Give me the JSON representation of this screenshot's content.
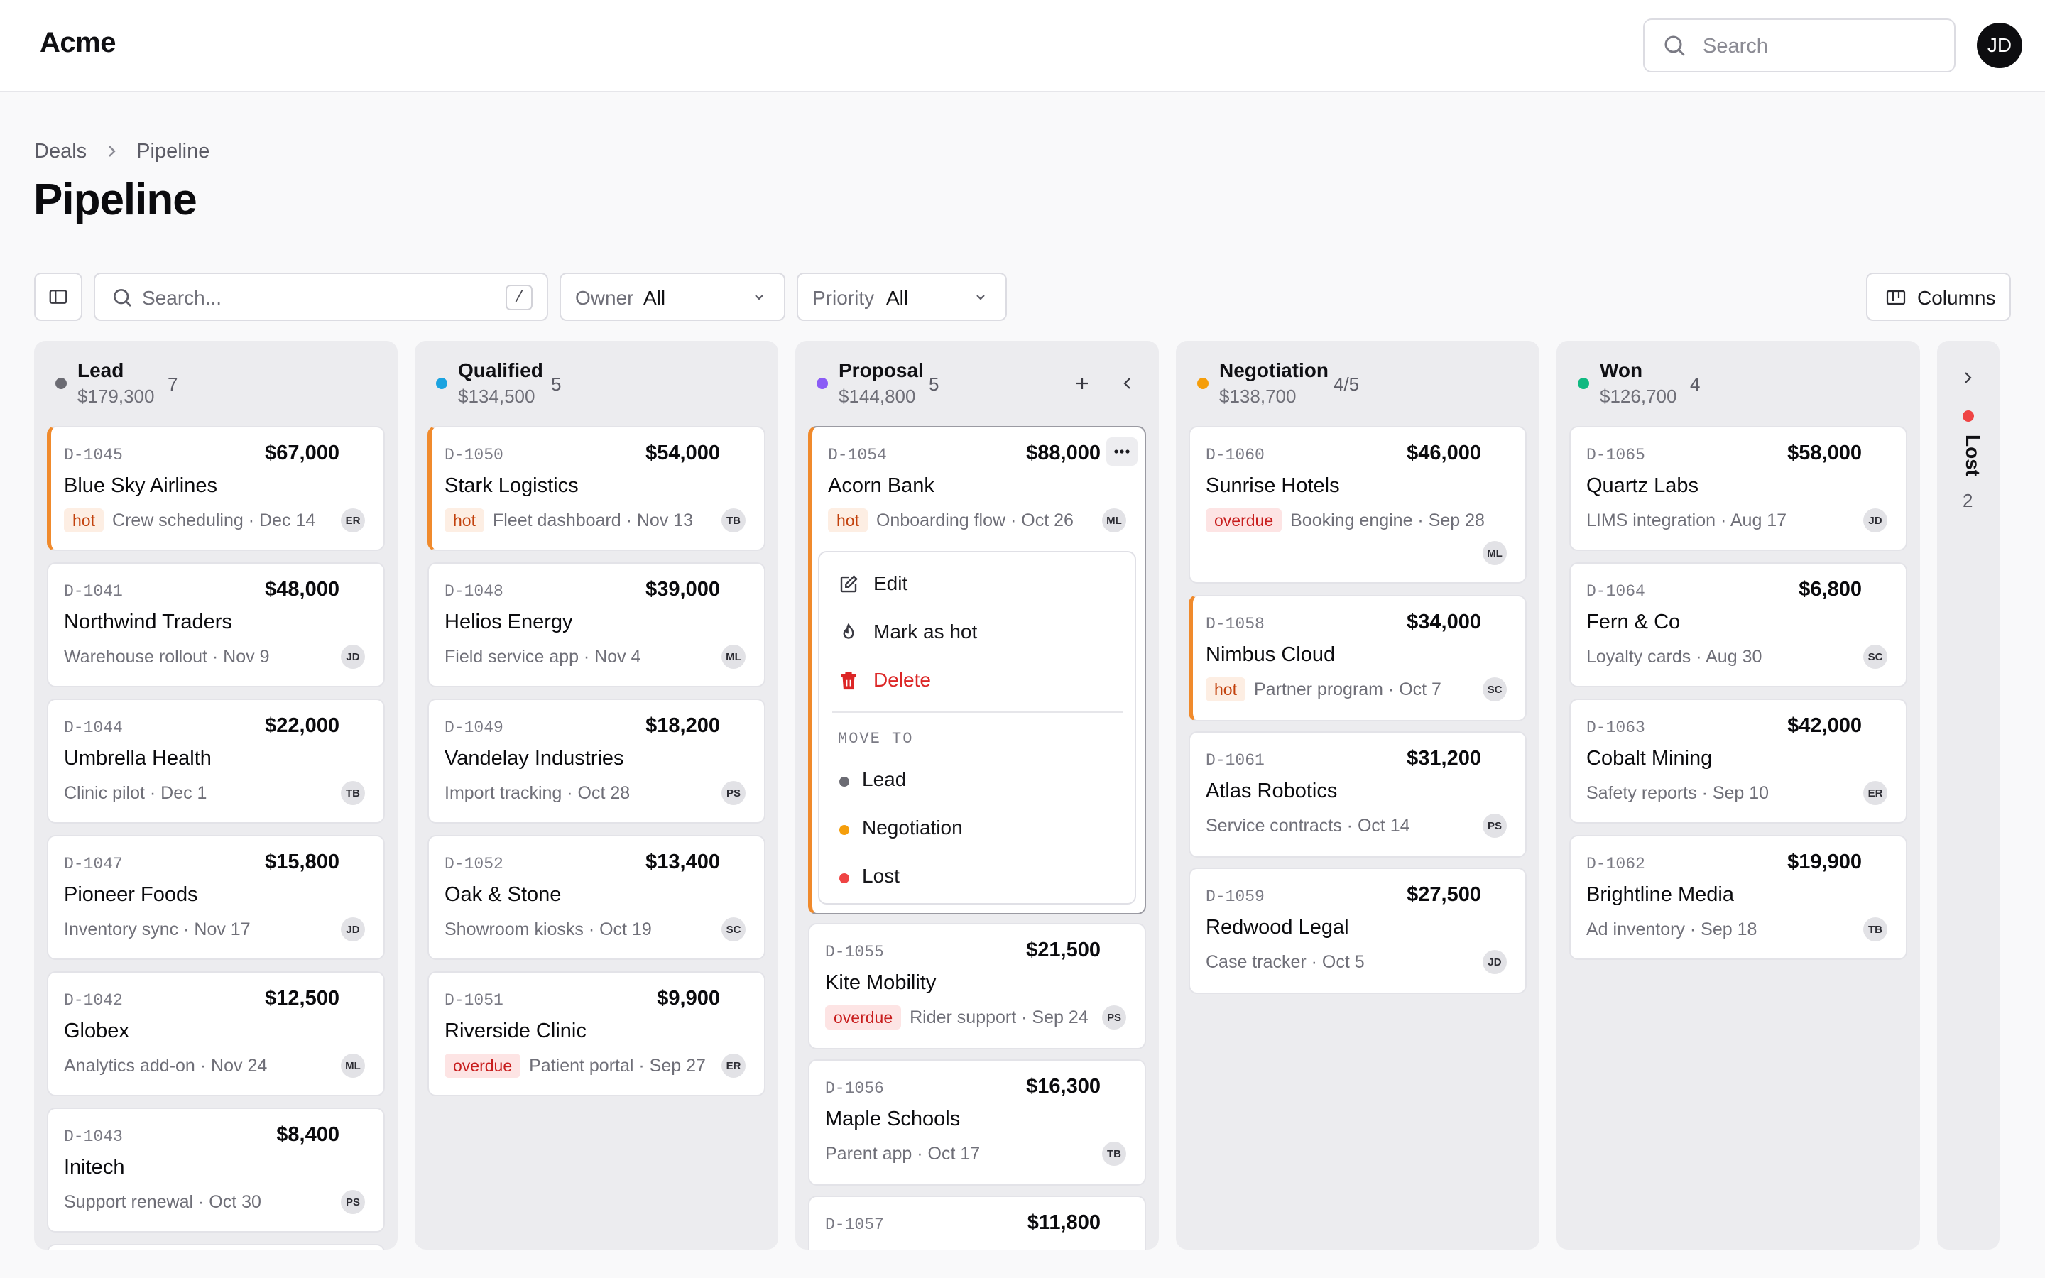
{
  "app": {
    "logo": "Acme",
    "avatar": "JD"
  },
  "header": {
    "search_placeholder": "Search"
  },
  "breadcrumb": {
    "parent": "Deals",
    "current": "Pipeline"
  },
  "page_title": "Pipeline",
  "toolbar": {
    "search_placeholder": "Search...",
    "shortcut": "/",
    "owner": {
      "label": "Owner",
      "value": "All"
    },
    "priority": {
      "label": "Priority",
      "value": "All"
    },
    "columns_label": "Columns"
  },
  "columns": [
    {
      "name": "Lead",
      "total": "$179,300",
      "count": "7",
      "color": "#6b6b73",
      "cards": [
        {
          "id": "D-1045",
          "amount": "$67,000",
          "name": "Blue Sky Airlines",
          "tag": "hot",
          "meta": "Crew scheduling · Dec 14",
          "owner": "ER"
        },
        {
          "id": "D-1041",
          "amount": "$48,000",
          "name": "Northwind Traders",
          "tag": "",
          "meta": "Warehouse rollout · Nov 9",
          "owner": "JD"
        },
        {
          "id": "D-1044",
          "amount": "$22,000",
          "name": "Umbrella Health",
          "tag": "",
          "meta": "Clinic pilot · Dec 1",
          "owner": "TB"
        },
        {
          "id": "D-1047",
          "amount": "$15,800",
          "name": "Pioneer Foods",
          "tag": "",
          "meta": "Inventory sync · Nov 17",
          "owner": "JD"
        },
        {
          "id": "D-1042",
          "amount": "$12,500",
          "name": "Globex",
          "tag": "",
          "meta": "Analytics add-on · Nov 24",
          "owner": "ML"
        },
        {
          "id": "D-1043",
          "amount": "$8,400",
          "name": "Initech",
          "tag": "",
          "meta": "Support renewal · Oct 30",
          "owner": "PS"
        }
      ]
    },
    {
      "name": "Qualified",
      "total": "$134,500",
      "count": "5",
      "color": "#1ba3e0",
      "cards": [
        {
          "id": "D-1050",
          "amount": "$54,000",
          "name": "Stark Logistics",
          "tag": "hot",
          "meta": "Fleet dashboard · Nov 13",
          "owner": "TB"
        },
        {
          "id": "D-1048",
          "amount": "$39,000",
          "name": "Helios Energy",
          "tag": "",
          "meta": "Field service app · Nov 4",
          "owner": "ML"
        },
        {
          "id": "D-1049",
          "amount": "$18,200",
          "name": "Vandelay Industries",
          "tag": "",
          "meta": "Import tracking · Oct 28",
          "owner": "PS"
        },
        {
          "id": "D-1052",
          "amount": "$13,400",
          "name": "Oak & Stone",
          "tag": "",
          "meta": "Showroom kiosks · Oct 19",
          "owner": "SC"
        },
        {
          "id": "D-1051",
          "amount": "$9,900",
          "name": "Riverside Clinic",
          "tag": "overdue",
          "meta": "Patient portal · Sep 27",
          "owner": "ER"
        }
      ]
    },
    {
      "name": "Proposal",
      "total": "$144,800",
      "count": "5",
      "color": "#8b5cf6",
      "cards": [
        {
          "id": "D-1054",
          "amount": "$88,000",
          "name": "Acorn Bank",
          "tag": "hot",
          "meta": "Onboarding flow · Oct 26",
          "owner": "ML"
        },
        {
          "id": "D-1055",
          "amount": "$21,500",
          "name": "Kite Mobility",
          "tag": "overdue",
          "meta": "Rider support · Sep 24",
          "owner": "PS"
        },
        {
          "id": "D-1056",
          "amount": "$16,300",
          "name": "Maple Schools",
          "tag": "",
          "meta": "Parent app · Oct 17",
          "owner": "TB"
        },
        {
          "id": "D-1057",
          "amount": "$11,800",
          "name": "",
          "tag": "",
          "meta": "",
          "owner": ""
        }
      ]
    },
    {
      "name": "Negotiation",
      "total": "$138,700",
      "count": "4/5",
      "color": "#f59e0b",
      "cards": [
        {
          "id": "D-1060",
          "amount": "$46,000",
          "name": "Sunrise Hotels",
          "tag": "overdue",
          "meta": "Booking engine · Sep 28",
          "owner": "ML"
        },
        {
          "id": "D-1058",
          "amount": "$34,000",
          "name": "Nimbus Cloud",
          "tag": "hot",
          "meta": "Partner program · Oct 7",
          "owner": "SC"
        },
        {
          "id": "D-1061",
          "amount": "$31,200",
          "name": "Atlas Robotics",
          "tag": "",
          "meta": "Service contracts · Oct 14",
          "owner": "PS"
        },
        {
          "id": "D-1059",
          "amount": "$27,500",
          "name": "Redwood Legal",
          "tag": "",
          "meta": "Case tracker · Oct 5",
          "owner": "JD"
        }
      ]
    },
    {
      "name": "Won",
      "total": "$126,700",
      "count": "4",
      "color": "#10b981",
      "cards": [
        {
          "id": "D-1065",
          "amount": "$58,000",
          "name": "Quartz Labs",
          "tag": "",
          "meta": "LIMS integration · Aug 17",
          "owner": "JD"
        },
        {
          "id": "D-1064",
          "amount": "$6,800",
          "name": "Fern & Co",
          "tag": "",
          "meta": "Loyalty cards · Aug 30",
          "owner": "SC"
        },
        {
          "id": "D-1063",
          "amount": "$42,000",
          "name": "Cobalt Mining",
          "tag": "",
          "meta": "Safety reports · Sep 10",
          "owner": "ER"
        },
        {
          "id": "D-1062",
          "amount": "$19,900",
          "name": "Brightline Media",
          "tag": "",
          "meta": "Ad inventory · Sep 18",
          "owner": "TB"
        }
      ]
    }
  ],
  "lost_column": {
    "name": "Lost",
    "count": "2",
    "color": "#ef4444"
  },
  "context_menu": {
    "edit": "Edit",
    "mark_hot": "Mark as hot",
    "delete": "Delete",
    "section": "MOVE TO",
    "move_targets": [
      {
        "label": "Lead",
        "color": "#6b6b73"
      },
      {
        "label": "Negotiation",
        "color": "#f59e0b"
      },
      {
        "label": "Lost",
        "color": "#ef4444"
      }
    ]
  }
}
